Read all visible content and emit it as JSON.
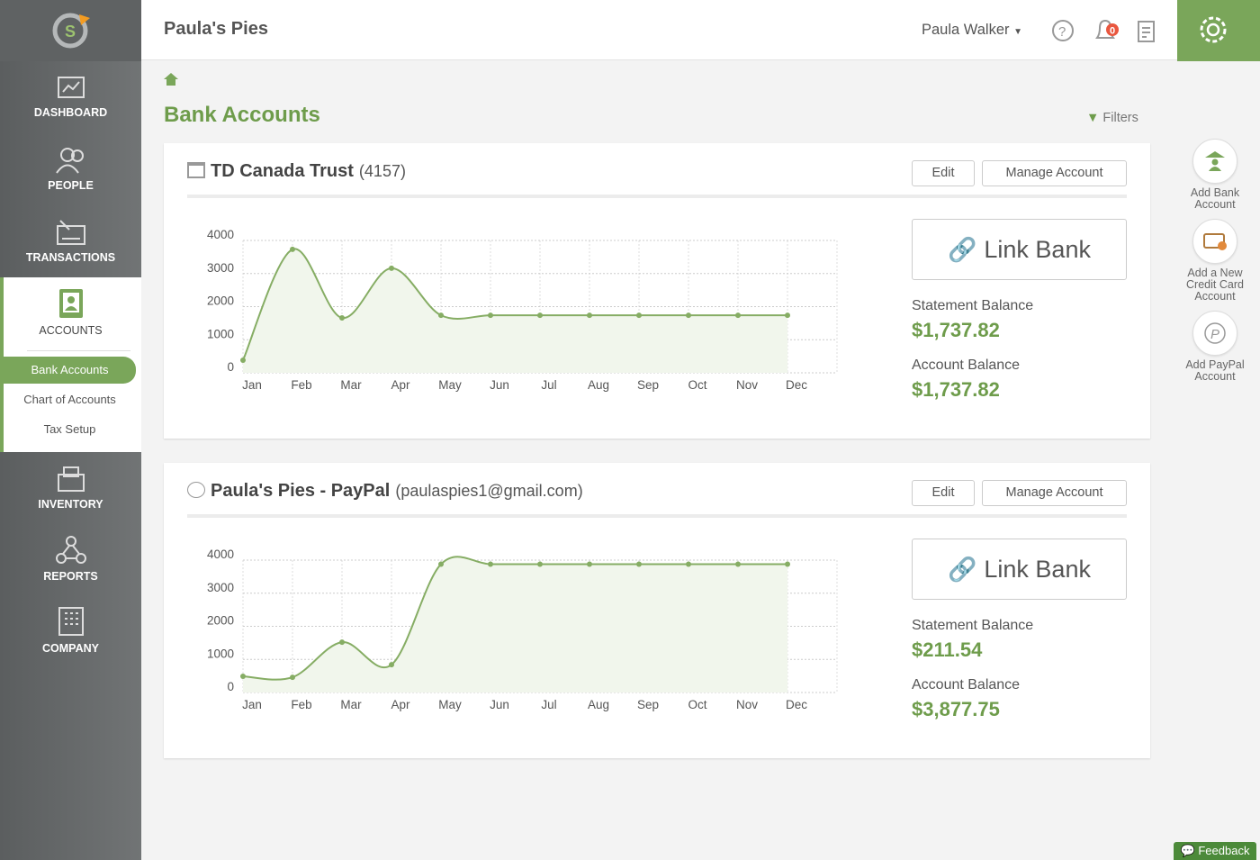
{
  "header": {
    "company": "Paula's Pies",
    "user": "Paula Walker",
    "notifications": 0
  },
  "sidebar": {
    "nav": [
      "DASHBOARD",
      "PEOPLE",
      "TRANSACTIONS",
      "ACCOUNTS",
      "INVENTORY",
      "REPORTS",
      "COMPANY"
    ],
    "subnav": [
      "Bank Accounts",
      "Chart of Accounts",
      "Tax Setup"
    ]
  },
  "page": {
    "title": "Bank Accounts",
    "filters": "Filters"
  },
  "accounts": [
    {
      "name": "TD Canada Trust",
      "detail": "(4157)",
      "edit": "Edit",
      "manage": "Manage Account",
      "link": "Link Bank",
      "statement_label": "Statement Balance",
      "statement_balance": "$1,737.82",
      "account_label": "Account Balance",
      "account_balance": "$1,737.82",
      "chart": {
        "type": "line",
        "color": "#86ad64",
        "categories": [
          "Jan",
          "Feb",
          "Mar",
          "Apr",
          "May",
          "Jun",
          "Jul",
          "Aug",
          "Sep",
          "Oct",
          "Nov",
          "Dec"
        ],
        "values": [
          380,
          3730,
          1660,
          3160,
          1737.82,
          1737.82,
          1737.82,
          1737.82,
          1737.82,
          1737.82,
          1737.82,
          1737.82
        ],
        "ylim": [
          0,
          4000
        ],
        "yticks": [
          0,
          1000,
          2000,
          3000,
          4000
        ],
        "grid": true
      }
    },
    {
      "name": "Paula's Pies - PayPal",
      "detail": "(paulaspies1@gmail.com)",
      "edit": "Edit",
      "manage": "Manage Account",
      "link": "Link Bank",
      "statement_label": "Statement Balance",
      "statement_balance": "$211.54",
      "account_label": "Account Balance",
      "account_balance": "$3,877.75",
      "chart": {
        "type": "line",
        "color": "#86ad64",
        "categories": [
          "Jan",
          "Feb",
          "Mar",
          "Apr",
          "May",
          "Jun",
          "Jul",
          "Aug",
          "Sep",
          "Oct",
          "Nov",
          "Dec"
        ],
        "values": [
          490,
          460,
          1520,
          840,
          3877.75,
          3877.75,
          3877.75,
          3877.75,
          3877.75,
          3877.75,
          3877.75,
          3877.75
        ],
        "ylim": [
          0,
          4000
        ],
        "yticks": [
          0,
          1000,
          2000,
          3000,
          4000
        ],
        "grid": true
      }
    }
  ],
  "actions": [
    "Add Bank Account",
    "Add a New Credit Card Account",
    "Add PayPal Account"
  ],
  "feedback": "Feedback"
}
